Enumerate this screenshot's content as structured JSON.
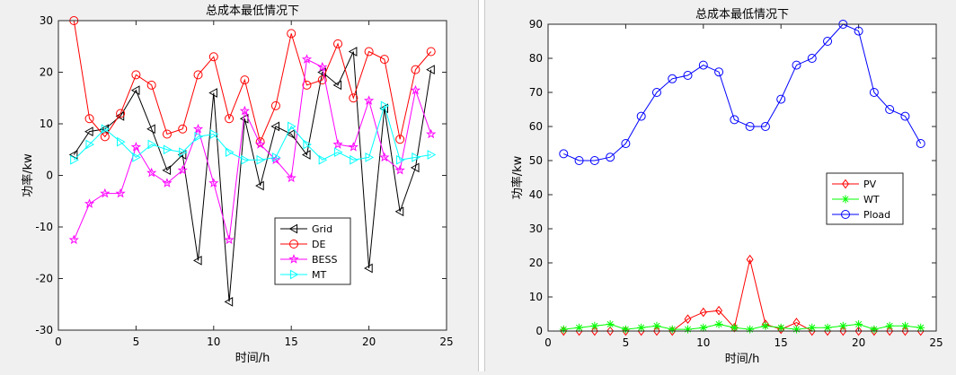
{
  "chart_data": [
    {
      "type": "line",
      "title": "总成本最低情况下",
      "xlabel": "时间/h",
      "ylabel": "功率/kw",
      "xlim": [
        0,
        25
      ],
      "ylim": [
        -30,
        30
      ],
      "xticks": [
        0,
        5,
        10,
        15,
        20,
        25
      ],
      "yticks": [
        -30,
        -20,
        -10,
        0,
        10,
        20,
        30
      ],
      "grid": false,
      "legend_position": "bottom-right",
      "x": [
        1,
        2,
        3,
        4,
        5,
        6,
        7,
        8,
        9,
        10,
        11,
        12,
        13,
        14,
        15,
        16,
        17,
        18,
        19,
        20,
        21,
        22,
        23,
        24
      ],
      "series": [
        {
          "name": "Grid",
          "color": "#000000",
          "marker": "triangle-left",
          "values": [
            4,
            8.5,
            9,
            11.5,
            16.5,
            9,
            1,
            4,
            -16.5,
            16,
            -24.5,
            11,
            -2,
            9.5,
            8,
            4,
            20,
            17.5,
            24,
            -18,
            13,
            -7,
            1.5,
            20.5
          ]
        },
        {
          "name": "DE",
          "color": "#ff0000",
          "marker": "circle",
          "values": [
            30,
            11,
            7.5,
            12,
            19.5,
            17.5,
            8,
            9,
            19.5,
            23,
            11,
            18.5,
            6.5,
            13.5,
            27.5,
            17.5,
            18.5,
            25.5,
            15,
            24,
            22.5,
            7,
            20.5,
            24
          ]
        },
        {
          "name": "BESS",
          "color": "#ff00ff",
          "marker": "star",
          "values": [
            -12.5,
            -5.5,
            -3.5,
            -3.5,
            5.5,
            0.5,
            -1.5,
            1,
            9,
            -1.5,
            -12.5,
            12.5,
            6,
            3,
            -0.5,
            22.5,
            21,
            6,
            5.5,
            14.5,
            3.5,
            1,
            16.5,
            8
          ]
        },
        {
          "name": "MT",
          "color": "#00ffff",
          "marker": "triangle-right",
          "values": [
            3,
            6,
            9,
            6.5,
            3.5,
            6,
            5,
            4.5,
            7.5,
            8,
            4.5,
            3,
            3,
            3.5,
            9.5,
            6,
            3,
            4.5,
            3,
            3.5,
            13.5,
            3,
            3.5,
            4
          ]
        }
      ]
    },
    {
      "type": "line",
      "title": "总成本最低情况下",
      "xlabel": "时间/h",
      "ylabel": "功率/kw",
      "xlim": [
        0,
        25
      ],
      "ylim": [
        0,
        90
      ],
      "xticks": [
        0,
        5,
        10,
        15,
        20,
        25
      ],
      "yticks": [
        0,
        10,
        20,
        30,
        40,
        50,
        60,
        70,
        80,
        90
      ],
      "grid": false,
      "legend_position": "middle-right",
      "x": [
        1,
        2,
        3,
        4,
        5,
        6,
        7,
        8,
        9,
        10,
        11,
        12,
        13,
        14,
        15,
        16,
        17,
        18,
        19,
        20,
        21,
        22,
        23,
        24
      ],
      "series": [
        {
          "name": "PV",
          "color": "#ff0000",
          "marker": "diamond",
          "values": [
            0,
            0,
            0,
            0,
            0,
            0,
            0,
            0,
            3.5,
            5.5,
            6,
            1,
            21,
            2,
            0.5,
            2.5,
            0,
            0,
            0,
            0,
            0,
            0,
            0,
            0
          ]
        },
        {
          "name": "WT",
          "color": "#00ff00",
          "marker": "asterisk",
          "values": [
            0.5,
            1,
            1.5,
            2,
            0.5,
            1,
            1.5,
            0.5,
            0.5,
            1,
            2,
            1,
            0.5,
            1.5,
            1,
            0.5,
            1,
            1,
            1.5,
            2,
            0.5,
            1.5,
            1.5,
            1
          ]
        },
        {
          "name": "Pload",
          "color": "#0000ff",
          "marker": "circle",
          "values": [
            52,
            50,
            50,
            51,
            55,
            63,
            70,
            74,
            75,
            78,
            76,
            62,
            60,
            60,
            68,
            78,
            80,
            85,
            90,
            88,
            70,
            65,
            63,
            55
          ]
        }
      ]
    }
  ]
}
